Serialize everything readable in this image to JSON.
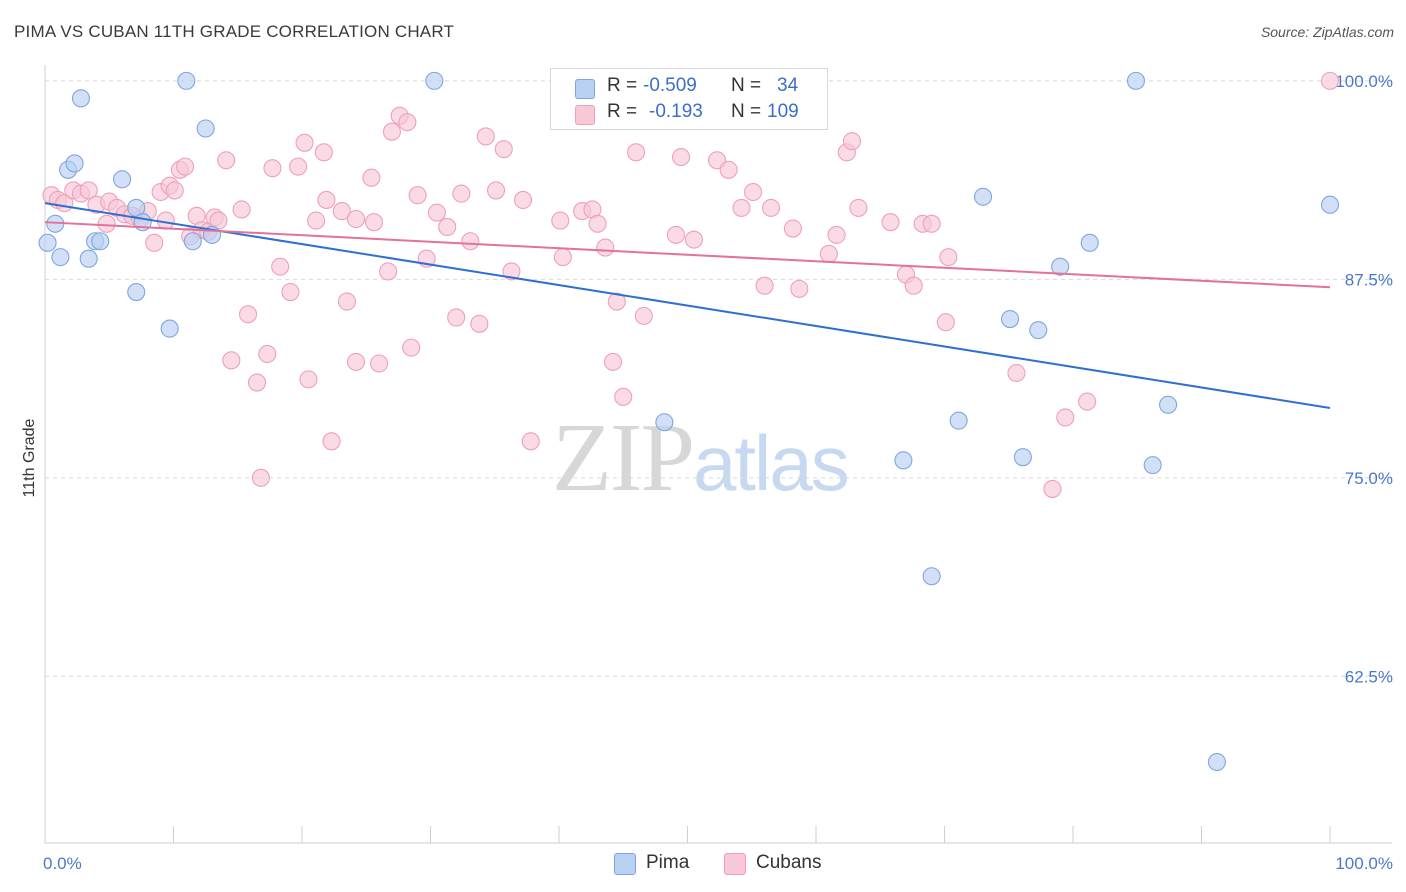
{
  "header": {
    "title": "PIMA VS CUBAN 11TH GRADE CORRELATION CHART",
    "source": "Source: ZipAtlas.com"
  },
  "legend": {
    "pima": {
      "r_label": "R =",
      "r_value": "-0.509",
      "n_label": "N =",
      "n_value": "34"
    },
    "cubans": {
      "r_label": "R =",
      "r_value": "-0.193",
      "n_label": "N =",
      "n_value": "109"
    }
  },
  "bottom_legend": {
    "pima": "Pima",
    "cubans": "Cubans"
  },
  "watermark": {
    "zip": "ZIP",
    "atlas": "atlas"
  },
  "colors": {
    "pima_fill": "#b8d0f2",
    "pima_stroke": "#7fa6de",
    "pima_line": "#2f6fd0",
    "cubans_fill": "#f8c8d7",
    "cubans_stroke": "#eea0b9",
    "cubans_line": "#e2729a",
    "tick_label": "#4a78c9",
    "grid": "#d9d9d9"
  },
  "chart_data": {
    "type": "scatter",
    "title": "PIMA VS CUBAN 11TH GRADE CORRELATION CHART",
    "xlabel": "",
    "ylabel": "11th Grade",
    "xlim": [
      0,
      100
    ],
    "ylim": [
      52,
      101
    ],
    "y_ticks": [
      62.5,
      75.0,
      87.5,
      100.0
    ],
    "y_tick_labels": [
      "62.5%",
      "75.0%",
      "87.5%",
      "100.0%"
    ],
    "x_tick_labels": [
      "0.0%",
      "100.0%"
    ],
    "grid": true,
    "series": [
      {
        "name": "Pima",
        "r": -0.509,
        "n": 34,
        "trend": {
          "x": [
            0,
            100
          ],
          "y": [
            92.3,
            79.4
          ]
        },
        "points": [
          [
            0.2,
            89.8
          ],
          [
            0.8,
            91.0
          ],
          [
            1.2,
            88.9
          ],
          [
            1.8,
            94.4
          ],
          [
            2.3,
            94.8
          ],
          [
            2.8,
            98.9
          ],
          [
            3.4,
            88.8
          ],
          [
            3.9,
            89.9
          ],
          [
            4.3,
            89.9
          ],
          [
            6.0,
            93.8
          ],
          [
            7.1,
            92.0
          ],
          [
            7.6,
            91.1
          ],
          [
            7.1,
            86.7
          ],
          [
            9.7,
            84.4
          ],
          [
            11.0,
            100.0
          ],
          [
            11.5,
            89.9
          ],
          [
            12.5,
            97.0
          ],
          [
            13.0,
            90.3
          ],
          [
            30.3,
            100.0
          ],
          [
            48.2,
            78.5
          ],
          [
            66.8,
            76.1
          ],
          [
            69.0,
            68.8
          ],
          [
            71.1,
            78.6
          ],
          [
            73.0,
            92.7
          ],
          [
            75.1,
            85.0
          ],
          [
            76.1,
            76.3
          ],
          [
            77.3,
            84.3
          ],
          [
            79.0,
            88.3
          ],
          [
            81.3,
            89.8
          ],
          [
            84.9,
            100.0
          ],
          [
            86.2,
            75.8
          ],
          [
            87.4,
            79.6
          ],
          [
            91.2,
            57.1
          ],
          [
            100.0,
            92.2
          ]
        ]
      },
      {
        "name": "Cubans",
        "r": -0.193,
        "n": 109,
        "trend": {
          "x": [
            0,
            100
          ],
          "y": [
            91.1,
            87.0
          ]
        },
        "points": [
          [
            0.5,
            92.8
          ],
          [
            1.0,
            92.5
          ],
          [
            1.5,
            92.3
          ],
          [
            2.2,
            93.1
          ],
          [
            2.8,
            92.9
          ],
          [
            3.4,
            93.1
          ],
          [
            4.0,
            92.2
          ],
          [
            4.8,
            91.0
          ],
          [
            5.0,
            92.4
          ],
          [
            5.6,
            92.0
          ],
          [
            6.2,
            91.6
          ],
          [
            6.8,
            91.5
          ],
          [
            7.4,
            91.3
          ],
          [
            8.0,
            91.8
          ],
          [
            8.5,
            89.8
          ],
          [
            9.0,
            93.0
          ],
          [
            9.4,
            91.2
          ],
          [
            9.7,
            93.4
          ],
          [
            10.1,
            93.1
          ],
          [
            10.5,
            94.4
          ],
          [
            10.9,
            94.6
          ],
          [
            11.3,
            90.2
          ],
          [
            11.8,
            91.5
          ],
          [
            12.2,
            90.6
          ],
          [
            12.7,
            90.5
          ],
          [
            13.2,
            91.4
          ],
          [
            13.5,
            91.2
          ],
          [
            14.1,
            95.0
          ],
          [
            14.5,
            82.4
          ],
          [
            15.3,
            91.9
          ],
          [
            15.8,
            85.3
          ],
          [
            16.5,
            81.0
          ],
          [
            16.8,
            75.0
          ],
          [
            17.3,
            82.8
          ],
          [
            17.7,
            94.5
          ],
          [
            18.3,
            88.3
          ],
          [
            19.1,
            86.7
          ],
          [
            19.7,
            94.6
          ],
          [
            20.2,
            96.1
          ],
          [
            20.5,
            81.2
          ],
          [
            21.1,
            91.2
          ],
          [
            21.7,
            95.5
          ],
          [
            21.9,
            92.5
          ],
          [
            22.3,
            77.3
          ],
          [
            23.1,
            91.8
          ],
          [
            23.5,
            86.1
          ],
          [
            24.2,
            91.3
          ],
          [
            24.2,
            82.3
          ],
          [
            25.4,
            93.9
          ],
          [
            25.6,
            91.1
          ],
          [
            26.0,
            82.2
          ],
          [
            26.7,
            88.0
          ],
          [
            27.0,
            96.8
          ],
          [
            27.6,
            97.8
          ],
          [
            28.2,
            97.4
          ],
          [
            28.5,
            83.2
          ],
          [
            29.0,
            92.8
          ],
          [
            29.7,
            88.8
          ],
          [
            30.5,
            91.7
          ],
          [
            31.3,
            90.8
          ],
          [
            32.0,
            85.1
          ],
          [
            32.4,
            92.9
          ],
          [
            33.1,
            89.9
          ],
          [
            33.8,
            84.7
          ],
          [
            34.3,
            96.5
          ],
          [
            35.1,
            93.1
          ],
          [
            35.7,
            95.7
          ],
          [
            36.3,
            88.0
          ],
          [
            37.2,
            92.5
          ],
          [
            37.8,
            77.3
          ],
          [
            40.1,
            91.2
          ],
          [
            40.3,
            88.9
          ],
          [
            41.8,
            91.8
          ],
          [
            42.6,
            91.9
          ],
          [
            43.0,
            91.0
          ],
          [
            43.6,
            89.5
          ],
          [
            44.2,
            82.3
          ],
          [
            44.5,
            86.1
          ],
          [
            45.0,
            80.1
          ],
          [
            46.0,
            95.5
          ],
          [
            46.6,
            85.2
          ],
          [
            49.1,
            90.3
          ],
          [
            49.5,
            95.2
          ],
          [
            50.5,
            90.0
          ],
          [
            52.3,
            95.0
          ],
          [
            53.2,
            94.4
          ],
          [
            54.2,
            92.0
          ],
          [
            55.1,
            93.0
          ],
          [
            56.0,
            87.1
          ],
          [
            56.5,
            92.0
          ],
          [
            58.2,
            90.7
          ],
          [
            58.7,
            86.9
          ],
          [
            61.0,
            89.1
          ],
          [
            61.6,
            90.3
          ],
          [
            62.4,
            95.5
          ],
          [
            62.8,
            96.2
          ],
          [
            63.3,
            92.0
          ],
          [
            65.8,
            91.1
          ],
          [
            67.0,
            87.8
          ],
          [
            67.6,
            87.1
          ],
          [
            68.3,
            91.0
          ],
          [
            69.0,
            91.0
          ],
          [
            70.1,
            84.8
          ],
          [
            70.3,
            88.9
          ],
          [
            75.6,
            81.6
          ],
          [
            78.4,
            74.3
          ],
          [
            79.4,
            78.8
          ],
          [
            81.1,
            79.8
          ],
          [
            100.0,
            100.0
          ]
        ]
      }
    ]
  }
}
